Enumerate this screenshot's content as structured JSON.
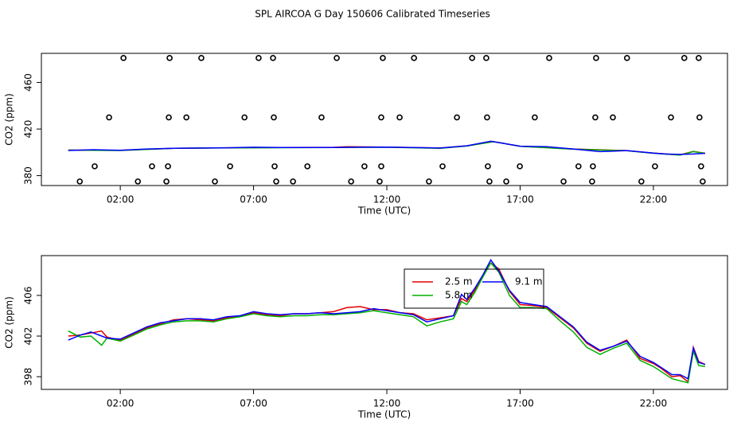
{
  "chart_data": [
    {
      "type": "line",
      "title": "SPL AIRCOA G  Day 150606  Calibrated Timeseries",
      "x_label": "Time (UTC)",
      "y_label": "CO2 (ppm)",
      "xlim": [
        -0.96,
        24.78
      ],
      "ylim": [
        371.5,
        485
      ],
      "xticks": [
        {
          "value": 2,
          "label": "02:00"
        },
        {
          "value": 7,
          "label": "07:00"
        },
        {
          "value": 12,
          "label": "12:00"
        },
        {
          "value": 17,
          "label": "17:00"
        },
        {
          "value": 22,
          "label": "22:00"
        }
      ],
      "yticks": [
        380,
        420,
        460
      ],
      "series": [
        {
          "type": "scatter",
          "color": "#000000",
          "x": [
            2.12,
            3.85,
            5.04,
            7.19,
            7.73,
            10.12,
            11.85,
            13.02,
            15.2,
            15.73,
            18.09,
            19.85,
            21.01,
            23.16,
            23.7,
            1.58,
            3.82,
            4.48,
            6.66,
            7.76,
            9.55,
            11.79,
            12.48,
            14.63,
            15.76,
            17.55,
            19.82,
            20.48,
            22.66,
            23.73,
            1.04,
            3.19,
            3.79,
            6.12,
            7.79,
            9.02,
            11.16,
            11.79,
            14.09,
            15.79,
            16.99,
            19.19,
            19.73,
            22.06,
            23.79,
            0.48,
            2.66,
            3.73,
            5.55,
            7.85,
            8.48,
            10.66,
            11.73,
            13.58,
            15.85,
            16.48,
            18.63,
            19.7,
            21.55,
            23.85
          ],
          "values": [
            481,
            481,
            481,
            481,
            481,
            481,
            481,
            481,
            481,
            481,
            481,
            481,
            481,
            481,
            481,
            430,
            430,
            430,
            430,
            430,
            430,
            430,
            430,
            430,
            430,
            430,
            430,
            430,
            430,
            430,
            388,
            388,
            388,
            388,
            388,
            388,
            388,
            388,
            388,
            388,
            388,
            388,
            388,
            388,
            388,
            375,
            375,
            375,
            375,
            375,
            375,
            375,
            375,
            375,
            375,
            375,
            375,
            375,
            375,
            375
          ]
        },
        {
          "type": "line",
          "color": "#d00000",
          "x": [
            0.05,
            2,
            4,
            6,
            8,
            10,
            10.5,
            12,
            14,
            15,
            16,
            17,
            19,
            21,
            22,
            23,
            23.5,
            23.94
          ],
          "values": [
            401.9,
            401.7,
            403.5,
            403.9,
            404.1,
            404.3,
            404.9,
            404.5,
            403.7,
            405.6,
            409.2,
            405.3,
            402.9,
            401.5,
            399.4,
            397.8,
            400.8,
            399.2
          ]
        },
        {
          "type": "line",
          "color": "#00b000",
          "x": [
            0.05,
            2,
            4,
            6,
            8,
            10,
            12,
            14,
            15,
            16,
            17,
            19,
            21,
            22,
            23,
            23.5,
            23.94
          ],
          "values": [
            401.9,
            401.6,
            403.4,
            403.8,
            404.0,
            404.1,
            404.4,
            403.5,
            405.4,
            409.2,
            405.2,
            402.7,
            401.4,
            399.2,
            397.6,
            400.6,
            399.1
          ]
        },
        {
          "type": "line",
          "color": "#0000ff",
          "x": [
            0.05,
            1,
            2,
            3,
            4,
            5,
            6,
            7,
            8,
            9,
            10,
            11,
            12,
            13,
            14,
            15,
            15.9,
            17,
            18,
            19,
            20,
            21,
            22,
            22.5,
            23,
            23.5,
            23.94
          ],
          "values": [
            401.6,
            402.3,
            401.7,
            402.9,
            403.5,
            403.7,
            403.9,
            404.4,
            404.1,
            404.2,
            404.2,
            404.4,
            404.5,
            404.1,
            403.7,
            405.6,
            409.5,
            405.3,
            404.9,
            402.9,
            400.6,
            401.5,
            399.4,
            398.5,
            398.2,
            398.6,
            399.2
          ]
        }
      ]
    },
    {
      "type": "line",
      "x_label": "Time (UTC)",
      "y_label": "CO2 (ppm)",
      "xlim": [
        -0.96,
        24.78
      ],
      "ylim": [
        396.75,
        409.92
      ],
      "xticks": [
        {
          "value": 2,
          "label": "02:00"
        },
        {
          "value": 7,
          "label": "07:00"
        },
        {
          "value": 12,
          "label": "12:00"
        },
        {
          "value": 17,
          "label": "17:00"
        },
        {
          "value": 22,
          "label": "22:00"
        }
      ],
      "yticks": [
        398,
        402,
        406
      ],
      "series": [
        {
          "name": "2.5 m",
          "type": "line",
          "color": "#e00000",
          "x": [
            0.05,
            0.5,
            0.9,
            1.3,
            1.5,
            2,
            2.5,
            3,
            3.5,
            4,
            4.5,
            5,
            5.5,
            6,
            6.5,
            7,
            7.5,
            8,
            8.5,
            9,
            9.5,
            10,
            10.5,
            11,
            11.5,
            12,
            12.5,
            13,
            13.5,
            14,
            14.5,
            14.8,
            15,
            15.3,
            15.6,
            15.9,
            16.2,
            16.6,
            17,
            17.5,
            18,
            18.5,
            19,
            19.5,
            20,
            20.5,
            21,
            21.5,
            22,
            22.3,
            22.7,
            23,
            23.3,
            23.5,
            23.7,
            23.94
          ],
          "values": [
            402.0,
            402.1,
            402.3,
            402.5,
            401.9,
            401.6,
            402.2,
            402.8,
            403.2,
            403.6,
            403.7,
            403.6,
            403.5,
            403.8,
            404.0,
            404.3,
            404.1,
            404.0,
            404.2,
            404.2,
            404.3,
            404.4,
            404.8,
            404.9,
            404.6,
            404.6,
            404.3,
            404.2,
            403.6,
            403.8,
            404.0,
            405.7,
            405.4,
            406.5,
            407.9,
            409.2,
            408.6,
            406.4,
            405.1,
            405.0,
            404.8,
            403.8,
            402.8,
            401.3,
            400.5,
            401.0,
            401.6,
            399.8,
            399.3,
            398.8,
            398.0,
            398.1,
            397.5,
            400.9,
            399.5,
            399.2
          ]
        },
        {
          "name": "5.8 m",
          "type": "line",
          "color": "#00b000",
          "x": [
            0.05,
            0.5,
            0.9,
            1.3,
            1.5,
            2,
            2.5,
            3,
            3.5,
            4,
            4.5,
            5,
            5.5,
            6,
            6.5,
            7,
            7.5,
            8,
            8.5,
            9,
            9.5,
            10,
            10.5,
            11,
            11.5,
            12,
            12.5,
            13,
            13.5,
            14,
            14.5,
            14.8,
            15,
            15.3,
            15.6,
            15.9,
            16.2,
            16.6,
            17,
            17.5,
            18,
            18.5,
            19,
            19.5,
            20,
            20.5,
            21,
            21.5,
            22,
            22.3,
            22.7,
            23,
            23.3,
            23.5,
            23.7,
            23.94
          ],
          "values": [
            402.5,
            401.9,
            402.0,
            401.1,
            401.8,
            401.5,
            402.1,
            402.7,
            403.1,
            403.4,
            403.5,
            403.5,
            403.4,
            403.7,
            403.9,
            404.2,
            404.0,
            403.9,
            404.0,
            404.0,
            404.1,
            404.1,
            404.2,
            404.3,
            404.5,
            404.3,
            404.1,
            403.9,
            403.0,
            403.4,
            403.7,
            405.4,
            405.1,
            406.3,
            407.8,
            409.2,
            408.3,
            406.0,
            404.8,
            404.8,
            404.7,
            403.5,
            402.4,
            400.9,
            400.2,
            400.8,
            401.3,
            399.6,
            399.0,
            398.5,
            397.8,
            397.6,
            397.4,
            400.5,
            399.1,
            399.0
          ]
        },
        {
          "name": "9.1 m",
          "type": "line",
          "color": "#0000ff",
          "x": [
            0.05,
            0.5,
            0.9,
            1.3,
            1.5,
            2,
            2.5,
            3,
            3.5,
            4,
            4.5,
            5,
            5.5,
            6,
            6.5,
            7,
            7.5,
            8,
            8.5,
            9,
            9.5,
            10,
            10.5,
            11,
            11.5,
            12,
            12.5,
            13,
            13.5,
            14,
            14.5,
            14.8,
            15,
            15.3,
            15.6,
            15.9,
            16.2,
            16.6,
            17,
            17.5,
            18,
            18.5,
            19,
            19.5,
            20,
            20.5,
            21,
            21.5,
            22,
            22.3,
            22.7,
            23,
            23.3,
            23.5,
            23.7,
            23.94
          ],
          "values": [
            401.6,
            402.1,
            402.4,
            402.0,
            401.8,
            401.7,
            402.3,
            402.9,
            403.3,
            403.5,
            403.7,
            403.7,
            403.6,
            403.9,
            404.0,
            404.4,
            404.2,
            404.1,
            404.2,
            404.2,
            404.3,
            404.2,
            404.3,
            404.4,
            404.7,
            404.5,
            404.3,
            404.1,
            403.4,
            403.7,
            404.0,
            406.1,
            405.6,
            406.7,
            408.0,
            409.5,
            408.4,
            406.5,
            405.3,
            405.1,
            404.9,
            403.9,
            402.9,
            401.4,
            400.6,
            401.0,
            401.5,
            400.0,
            399.4,
            398.9,
            398.2,
            398.2,
            397.8,
            400.8,
            399.4,
            399.2
          ]
        }
      ]
    }
  ]
}
